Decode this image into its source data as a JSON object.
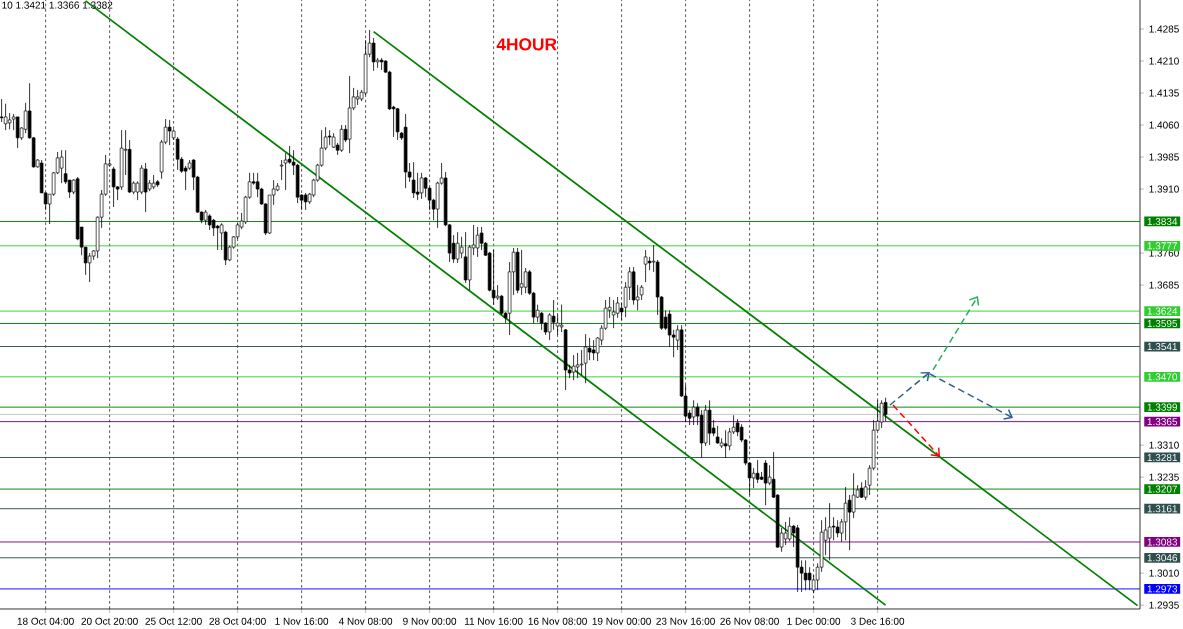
{
  "chart_data": {
    "type": "candlestick",
    "title": "4HOUR",
    "annotations": [
      "10 1.3421 1.3366 1.3382"
    ],
    "grid": "x",
    "ylim": [
      1.2926,
      1.4353
    ],
    "categories": [
      null,
      null,
      null,
      null,
      null,
      null,
      null,
      null,
      null,
      null,
      null,
      "18 Oct 04:00",
      null,
      null,
      null,
      null,
      null,
      null,
      null,
      null,
      null,
      null,
      null,
      null,
      null,
      null,
      null,
      "20 Oct 20:00",
      null,
      null,
      null,
      null,
      null,
      null,
      null,
      null,
      null,
      null,
      null,
      null,
      null,
      null,
      null,
      "25 Oct 12:00",
      null,
      null,
      null,
      null,
      null,
      null,
      null,
      null,
      null,
      null,
      null,
      null,
      null,
      null,
      null,
      "28 Oct 04:00",
      null,
      null,
      null,
      null,
      null,
      null,
      null,
      null,
      null,
      null,
      null,
      null,
      null,
      null,
      null,
      "1 Nov 16:00",
      null,
      null,
      null,
      null,
      null,
      null,
      null,
      null,
      null,
      null,
      null,
      null,
      null,
      null,
      null,
      "4 Nov 08:00",
      null,
      null,
      null,
      null,
      null,
      null,
      null,
      null,
      null,
      null,
      null,
      null,
      null,
      null,
      null,
      "9 Nov 00:00",
      null,
      null,
      null,
      null,
      null,
      null,
      null,
      null,
      null,
      null,
      null,
      null,
      null,
      null,
      null,
      "11 Nov 16:00",
      null,
      null,
      null,
      null,
      null,
      null,
      null,
      null,
      null,
      null,
      null,
      null,
      null,
      null,
      null,
      "16 Nov 08:00",
      null,
      null,
      null,
      null,
      null,
      null,
      null,
      null,
      null,
      null,
      null,
      null,
      null,
      null,
      null,
      "19 Nov 00:00",
      null,
      null,
      null,
      null,
      null,
      null,
      null,
      null,
      null,
      null,
      null,
      null,
      null,
      null,
      null,
      "23 Nov 16:00",
      null,
      null,
      null,
      null,
      null,
      null,
      null,
      null,
      null,
      null,
      null,
      null,
      null,
      null,
      null,
      "26 Nov 08:00",
      null,
      null,
      null,
      null,
      null,
      null,
      null,
      null,
      null,
      null,
      null,
      null,
      null,
      null,
      null,
      "1 Dec 00:00",
      null,
      null,
      null,
      null,
      null,
      null,
      null,
      null,
      null,
      null,
      null,
      null,
      null,
      null,
      null,
      "3 Dec 16:00",
      null,
      null,
      null,
      null,
      null,
      null,
      null,
      null,
      null,
      null,
      null,
      null,
      null,
      null,
      null,
      null,
      null,
      null,
      null,
      null,
      null,
      null,
      null,
      null,
      null,
      null,
      null,
      null,
      null,
      null,
      null,
      null,
      null,
      null,
      null,
      null,
      null,
      null,
      null,
      null,
      null,
      null,
      null,
      null,
      null,
      null,
      null,
      null,
      null,
      null,
      null,
      null,
      null,
      null,
      null,
      null,
      null,
      null,
      null,
      null,
      null,
      null,
      null,
      null,
      null
    ],
    "yticks": [
      {
        "value": 1.4285,
        "label": "1.4285"
      },
      {
        "value": 1.421,
        "label": "1.4210"
      },
      {
        "value": 1.4135,
        "label": "1.4135"
      },
      {
        "value": 1.406,
        "label": "1.4060"
      },
      {
        "value": 1.3985,
        "label": "1.3985"
      },
      {
        "value": 1.391,
        "label": "1.3910"
      },
      {
        "value": 1.376,
        "label": "1.3760"
      },
      {
        "value": 1.3685,
        "label": "1.3685"
      },
      {
        "value": 1.331,
        "label": "1.3310"
      },
      {
        "value": 1.3235,
        "label": "1.3235"
      },
      {
        "value": 1.301,
        "label": "1.3010"
      },
      {
        "value": 1.2935,
        "label": "1.2935"
      }
    ],
    "ref_lines": [
      {
        "axis": "y",
        "value": 1.3834,
        "label": "1.3834",
        "color": "#008000"
      },
      {
        "axis": "y",
        "value": 1.3777,
        "label": "1.3777",
        "color": "#32cd32"
      },
      {
        "axis": "y",
        "value": 1.3624,
        "label": "1.3624",
        "color": "#32cd32"
      },
      {
        "axis": "y",
        "value": 1.3595,
        "label": "1.3595",
        "color": "#008000"
      },
      {
        "axis": "y",
        "value": 1.3541,
        "label": "1.3541",
        "color": "#2f4f4f"
      },
      {
        "axis": "y",
        "value": 1.347,
        "label": "1.3470",
        "color": "#32cd32"
      },
      {
        "axis": "y",
        "value": 1.3399,
        "label": "1.3399",
        "color": "#008000"
      },
      {
        "axis": "y",
        "value": 1.3382,
        "color": "#c0c0c0"
      },
      {
        "axis": "y",
        "value": 1.3365,
        "label": "1.3365",
        "color": "#800080"
      },
      {
        "axis": "y",
        "value": 1.3281,
        "label": "1.3281",
        "color": "#2f4f4f"
      },
      {
        "axis": "y",
        "value": 1.3207,
        "label": "1.3207",
        "color": "#008000"
      },
      {
        "axis": "y",
        "value": 1.3161,
        "label": "1.3161",
        "color": "#2f4f4f"
      },
      {
        "axis": "y",
        "value": 1.3083,
        "label": "1.3083",
        "color": "#800080"
      },
      {
        "axis": "y",
        "value": 1.3046,
        "label": "1.3046",
        "color": "#2f4f4f"
      },
      {
        "axis": "y",
        "value": 1.2973,
        "label": "1.2973",
        "color": "#0000ff"
      }
    ],
    "series": [
      {
        "type": "line",
        "color": "#008000",
        "line_style": "solid",
        "values": [
          null,
          null,
          null,
          null,
          null,
          null,
          null,
          null,
          null,
          null,
          null,
          null,
          null,
          null,
          null,
          null,
          null,
          null,
          null,
          null,
          null,
          null,
          null,
          null,
          null,
          null,
          null,
          null,
          null,
          null,
          null,
          null,
          null,
          null,
          null,
          null,
          null,
          null,
          null,
          null,
          null,
          null,
          null,
          null,
          null,
          null,
          null,
          null,
          null,
          null,
          null,
          null,
          null,
          null,
          null,
          null,
          null,
          null,
          null,
          null,
          null,
          null,
          null,
          null,
          null,
          null,
          null,
          null,
          null,
          null,
          null,
          null,
          null,
          null,
          null,
          null,
          null,
          null,
          null,
          null,
          null,
          null,
          null,
          null,
          null,
          null,
          null,
          null,
          null,
          null,
          null,
          null,
          null,
          1.4279,
          null,
          null,
          null,
          null,
          null,
          null,
          null,
          null,
          null,
          null,
          null,
          null,
          null,
          null,
          null,
          null,
          null,
          null,
          null,
          null,
          null,
          null,
          null,
          null,
          null,
          null,
          null,
          null,
          null,
          null,
          null,
          null,
          null,
          null,
          null,
          null,
          null,
          null,
          null,
          null,
          null,
          null,
          null,
          null,
          null,
          null,
          null,
          null,
          null,
          null,
          null,
          null,
          null,
          null,
          null,
          null,
          null,
          null,
          null,
          null,
          null,
          null,
          null,
          null,
          null,
          null,
          null,
          null,
          null,
          null,
          null,
          null,
          null,
          null,
          null,
          null,
          null,
          null,
          null,
          null,
          null,
          null,
          null,
          null,
          null,
          null,
          null,
          null,
          null,
          null,
          null,
          null,
          null,
          null,
          null,
          null,
          null,
          null,
          null,
          null,
          null,
          null,
          null,
          null,
          null,
          null,
          null,
          null,
          null,
          null,
          null,
          null,
          null,
          null,
          null,
          null,
          null,
          null,
          null,
          null,
          null,
          null,
          null,
          null,
          null,
          null,
          null,
          null,
          null,
          null,
          null,
          null,
          null,
          null,
          null,
          null,
          null,
          null,
          null,
          null,
          null,
          null,
          null,
          null,
          null,
          null,
          null,
          null,
          null,
          null,
          null,
          null,
          null,
          null,
          null,
          null,
          null,
          null,
          null,
          null,
          null,
          null,
          null,
          null,
          null,
          null,
          null,
          null,
          null,
          null,
          null,
          null,
          null,
          null,
          null,
          null,
          null,
          null,
          null,
          null,
          null,
          null,
          null,
          null,
          null,
          null,
          null,
          null,
          null,
          null,
          1.2934
        ]
      },
      {
        "type": "line",
        "color": "#008000",
        "line_style": "solid",
        "values": [
          null,
          null,
          null,
          null,
          null,
          null,
          null,
          null,
          null,
          null,
          null,
          null,
          null,
          null,
          null,
          null,
          null,
          null,
          null,
          null,
          null,
          1.4351,
          null,
          null,
          null,
          null,
          null,
          null,
          null,
          null,
          null,
          null,
          null,
          null,
          null,
          null,
          null,
          null,
          null,
          null,
          null,
          null,
          null,
          null,
          null,
          null,
          null,
          null,
          null,
          null,
          null,
          null,
          null,
          null,
          null,
          null,
          null,
          null,
          null,
          null,
          null,
          null,
          null,
          null,
          null,
          null,
          null,
          null,
          null,
          null,
          null,
          null,
          null,
          null,
          null,
          null,
          null,
          null,
          null,
          null,
          null,
          null,
          null,
          null,
          null,
          null,
          null,
          null,
          null,
          null,
          null,
          null,
          null,
          null,
          null,
          null,
          null,
          null,
          null,
          null,
          null,
          null,
          null,
          null,
          null,
          null,
          null,
          null,
          null,
          null,
          null,
          null,
          null,
          null,
          null,
          null,
          null,
          null,
          null,
          null,
          null,
          null,
          null,
          null,
          null,
          null,
          null,
          null,
          null,
          null,
          null,
          null,
          null,
          null,
          null,
          null,
          null,
          null,
          null,
          null,
          null,
          null,
          null,
          null,
          null,
          null,
          null,
          null,
          null,
          null,
          null,
          null,
          null,
          null,
          null,
          null,
          null,
          null,
          null,
          null,
          null,
          null,
          null,
          null,
          null,
          null,
          null,
          null,
          null,
          null,
          null,
          null,
          null,
          null,
          null,
          null,
          null,
          null,
          null,
          null,
          null,
          null,
          null,
          null,
          null,
          null,
          null,
          null,
          null,
          null,
          null,
          null,
          null,
          null,
          null,
          null,
          null,
          null,
          null,
          null,
          null,
          null,
          null,
          null,
          null,
          null,
          null,
          null,
          null,
          null,
          null,
          null,
          null,
          null,
          null,
          null,
          null,
          null,
          null,
          null,
          null,
          1.2935,
          null,
          null,
          null,
          null,
          null,
          null,
          null,
          null,
          null,
          null,
          null,
          null,
          null,
          null,
          null,
          null,
          null,
          null,
          null,
          null,
          null,
          null,
          null,
          null,
          null,
          null,
          null,
          null,
          null,
          null,
          null,
          null,
          null,
          null,
          null,
          null,
          null,
          null,
          null,
          null,
          null,
          null,
          null,
          null,
          null,
          null,
          null,
          null,
          null,
          null,
          null,
          null,
          null,
          null,
          null,
          null,
          null,
          null,
          null,
          null,
          null,
          null,
          null
        ]
      }
    ],
    "ohlc": [
      [
        1.4079,
        1.4121,
        1.4067,
        1.4077
      ],
      [
        1.4063,
        1.411,
        1.4048,
        1.4079
      ],
      [
        1.4065,
        1.4088,
        1.405,
        1.4072
      ],
      [
        1.4074,
        1.4086,
        1.4048,
        1.4079
      ],
      [
        1.4079,
        1.4079,
        1.4006,
        1.403
      ],
      [
        1.403,
        1.4055,
        1.4025,
        1.4053
      ],
      [
        1.405,
        1.4112,
        1.4041,
        1.4093
      ],
      [
        1.4093,
        1.4158,
        1.4028,
        1.403
      ],
      [
        1.403,
        1.4032,
        1.396,
        1.3962
      ],
      [
        1.3962,
        1.398,
        1.396,
        1.3978
      ],
      [
        1.3971,
        1.3978,
        1.3901,
        1.3901
      ],
      [
        1.3901,
        1.3901,
        1.3861,
        1.3875
      ],
      [
        1.3875,
        1.3898,
        1.3828,
        1.3898
      ],
      [
        1.3898,
        1.395,
        1.3894,
        1.3948
      ],
      [
        1.3948,
        1.3997,
        1.3945,
        1.3983
      ],
      [
        1.3959,
        1.4001,
        1.3924,
        1.3985
      ],
      [
        1.3946,
        1.4001,
        1.3922,
        1.3927
      ],
      [
        1.3931,
        1.3931,
        1.3889,
        1.3903
      ],
      [
        1.3903,
        1.3933,
        1.3898,
        1.3931
      ],
      [
        1.3934,
        1.3938,
        1.379,
        1.3793
      ],
      [
        1.3821,
        1.3821,
        1.3755,
        1.3774
      ],
      [
        1.3774,
        1.3774,
        1.3709,
        1.3737
      ],
      [
        1.3737,
        1.376,
        1.3692,
        1.3753
      ],
      [
        1.3753,
        1.3767,
        1.3744,
        1.3765
      ],
      [
        1.3765,
        1.3846,
        1.3748,
        1.3844
      ],
      [
        1.3844,
        1.3908,
        1.3819,
        1.3898
      ],
      [
        1.3898,
        1.399,
        1.3894,
        1.3969
      ],
      [
        1.3966,
        1.3978,
        1.3962,
        1.3969
      ],
      [
        1.3957,
        1.3962,
        1.3868,
        1.3915
      ],
      [
        1.3915,
        1.3917,
        1.3884,
        1.391
      ],
      [
        1.3915,
        1.4048,
        1.3908,
        1.4006
      ],
      [
        1.4001,
        1.4048,
        1.3943,
        1.4003
      ],
      [
        1.4003,
        1.4025,
        1.3901,
        1.3903
      ],
      [
        1.3903,
        1.3928,
        1.3898,
        1.3924
      ],
      [
        1.3903,
        1.3928,
        1.3884,
        1.3924
      ],
      [
        1.3903,
        1.3966,
        1.3898,
        1.3959
      ],
      [
        1.3957,
        1.3971,
        1.3856,
        1.3903
      ],
      [
        1.391,
        1.3931,
        1.3905,
        1.3924
      ],
      [
        1.3915,
        1.3943,
        1.391,
        1.3924
      ],
      [
        1.3927,
        1.3931,
        1.3915,
        1.392
      ],
      [
        1.395,
        1.4025,
        1.3934,
        1.402
      ],
      [
        1.402,
        1.4074,
        1.4015,
        1.4055
      ],
      [
        1.4055,
        1.4072,
        1.4013,
        1.4046
      ],
      [
        1.403,
        1.405,
        1.4025,
        1.4046
      ],
      [
        1.4027,
        1.4032,
        1.3955,
        1.398
      ],
      [
        1.398,
        1.3985,
        1.3948,
        1.3952
      ],
      [
        1.3959,
        1.3964,
        1.3908,
        1.3952
      ],
      [
        1.3959,
        1.3978,
        1.3955,
        1.3971
      ],
      [
        1.3978,
        1.398,
        1.3908,
        1.3938
      ],
      [
        1.3938,
        1.3941,
        1.3854,
        1.3856
      ],
      [
        1.3856,
        1.3858,
        1.383,
        1.3837
      ],
      [
        1.3837,
        1.3861,
        1.3826,
        1.3856
      ],
      [
        1.3847,
        1.3851,
        1.3814,
        1.3826
      ],
      [
        1.3837,
        1.384,
        1.38,
        1.3819
      ],
      [
        1.3823,
        1.3826,
        1.3767,
        1.3819
      ],
      [
        1.3807,
        1.383,
        1.3767,
        1.3826
      ],
      [
        1.3809,
        1.3812,
        1.3732,
        1.3744
      ],
      [
        1.3744,
        1.3777,
        1.3741,
        1.3774
      ],
      [
        1.3774,
        1.38,
        1.377,
        1.3798
      ],
      [
        1.3798,
        1.383,
        1.3793,
        1.3826
      ],
      [
        1.3821,
        1.3854,
        1.3816,
        1.3835
      ],
      [
        1.3833,
        1.3894,
        1.3828,
        1.3891
      ],
      [
        1.3891,
        1.3948,
        1.3887,
        1.3927
      ],
      [
        1.3927,
        1.3948,
        1.392,
        1.3924
      ],
      [
        1.3927,
        1.3948,
        1.3891,
        1.391
      ],
      [
        1.391,
        1.3913,
        1.3873,
        1.3875
      ],
      [
        1.3875,
        1.3877,
        1.3802,
        1.3807
      ],
      [
        1.3807,
        1.3896,
        1.3805,
        1.3896
      ],
      [
        1.3896,
        1.3931,
        1.3873,
        1.391
      ],
      [
        1.3908,
        1.3924,
        1.3905,
        1.3917
      ],
      [
        1.3964,
        1.3978,
        1.3931,
        1.3966
      ],
      [
        1.3971,
        1.3994,
        1.3908,
        1.3978
      ],
      [
        1.398,
        1.4011,
        1.3969,
        1.3973
      ],
      [
        1.3973,
        1.4001,
        1.3943,
        1.3966
      ],
      [
        1.3966,
        1.3969,
        1.3877,
        1.3891
      ],
      [
        1.3896,
        1.3898,
        1.3861,
        1.3884
      ],
      [
        1.3896,
        1.3901,
        1.3861,
        1.388
      ],
      [
        1.388,
        1.3901,
        1.3875,
        1.3898
      ],
      [
        1.3896,
        1.3934,
        1.3891,
        1.3931
      ],
      [
        1.3931,
        1.3969,
        1.3927,
        1.3966
      ],
      [
        1.3966,
        1.4048,
        1.3962,
        1.4006
      ],
      [
        1.4006,
        1.4055,
        1.4001,
        1.4032
      ],
      [
        1.4034,
        1.4048,
        1.4013,
        1.4032
      ],
      [
        1.4008,
        1.4041,
        1.4006,
        1.4032
      ],
      [
        1.4013,
        1.4018,
        1.399,
        1.4001
      ],
      [
        1.4001,
        1.406,
        1.3997,
        1.405
      ],
      [
        1.405,
        1.406,
        1.402,
        1.4025
      ],
      [
        1.4027,
        1.4175,
        1.3994,
        1.41
      ],
      [
        1.41,
        1.4147,
        1.4095,
        1.4126
      ],
      [
        1.4121,
        1.4142,
        1.4107,
        1.4126
      ],
      [
        1.4121,
        1.4142,
        1.4116,
        1.4137
      ],
      [
        1.4135,
        1.4259,
        1.413,
        1.4226
      ],
      [
        1.4226,
        1.4283,
        1.4219,
        1.4252
      ],
      [
        1.4252,
        1.4264,
        1.4187,
        1.4208
      ],
      [
        1.4208,
        1.4217,
        1.4194,
        1.4212
      ],
      [
        1.4212,
        1.4217,
        1.4189,
        1.4208
      ],
      [
        1.421,
        1.4212,
        1.4182,
        1.4184
      ],
      [
        1.4184,
        1.4187,
        1.4095,
        1.4098
      ],
      [
        1.4102,
        1.4105,
        1.4032,
        1.4098
      ],
      [
        1.4098,
        1.41,
        1.4025,
        1.4044
      ],
      [
        1.4041,
        1.4044,
        1.4025,
        1.403
      ],
      [
        1.4055,
        1.4086,
        1.3912,
        1.395
      ],
      [
        1.395,
        1.3971,
        1.3927,
        1.3938
      ],
      [
        1.3931,
        1.3973,
        1.3889,
        1.3901
      ],
      [
        1.3903,
        1.3948,
        1.3884,
        1.3898
      ],
      [
        1.3901,
        1.3948,
        1.3887,
        1.3936
      ],
      [
        1.3936,
        1.3938,
        1.3891,
        1.3912
      ],
      [
        1.3912,
        1.3915,
        1.3861,
        1.3884
      ],
      [
        1.3884,
        1.3887,
        1.3837,
        1.3863
      ],
      [
        1.3863,
        1.3927,
        1.3819,
        1.3924
      ],
      [
        1.3924,
        1.3971,
        1.392,
        1.3936
      ],
      [
        1.3936,
        1.395,
        1.3823,
        1.3826
      ],
      [
        1.3826,
        1.3828,
        1.3739,
        1.376
      ],
      [
        1.3783,
        1.3802,
        1.3737,
        1.3746
      ],
      [
        1.3746,
        1.3809,
        1.3737,
        1.3783
      ],
      [
        1.376,
        1.3798,
        1.3748,
        1.3774
      ],
      [
        1.3751,
        1.3809,
        1.369,
        1.3697
      ],
      [
        1.3697,
        1.3779,
        1.3673,
        1.3774
      ],
      [
        1.3772,
        1.3826,
        1.3755,
        1.3779
      ],
      [
        1.3772,
        1.3821,
        1.3751,
        1.3802
      ],
      [
        1.3807,
        1.3821,
        1.3767,
        1.3783
      ],
      [
        1.3783,
        1.3786,
        1.3753,
        1.3755
      ],
      [
        1.376,
        1.3763,
        1.367,
        1.3673
      ],
      [
        1.3673,
        1.3767,
        1.3639,
        1.3655
      ],
      [
        1.3655,
        1.3685,
        1.365,
        1.3659
      ],
      [
        1.3659,
        1.3662,
        1.3615,
        1.3619
      ],
      [
        1.3619,
        1.3622,
        1.3596,
        1.3608
      ],
      [
        1.3619,
        1.3739,
        1.3568,
        1.3716
      ],
      [
        1.3716,
        1.3772,
        1.3662,
        1.3762
      ],
      [
        1.3762,
        1.3772,
        1.3666,
        1.3673
      ],
      [
        1.368,
        1.3767,
        1.3662,
        1.3688
      ],
      [
        1.368,
        1.3725,
        1.3666,
        1.3716
      ],
      [
        1.3716,
        1.372,
        1.3662,
        1.3666
      ],
      [
        1.3666,
        1.3669,
        1.3596,
        1.361
      ],
      [
        1.361,
        1.3639,
        1.3598,
        1.3626
      ],
      [
        1.3619,
        1.3622,
        1.358,
        1.3596
      ],
      [
        1.3596,
        1.3598,
        1.3568,
        1.3575
      ],
      [
        1.3575,
        1.3619,
        1.3556,
        1.3615
      ],
      [
        1.3612,
        1.365,
        1.358,
        1.3598
      ],
      [
        1.3589,
        1.3615,
        1.3568,
        1.3596
      ],
      [
        1.3587,
        1.3639,
        1.3575,
        1.3591
      ],
      [
        1.358,
        1.3582,
        1.3439,
        1.3486
      ],
      [
        1.3486,
        1.3498,
        1.3467,
        1.3479
      ],
      [
        1.3481,
        1.3521,
        1.3462,
        1.3495
      ],
      [
        1.3493,
        1.3526,
        1.3467,
        1.3498
      ],
      [
        1.3498,
        1.3533,
        1.3474,
        1.35
      ],
      [
        1.3502,
        1.357,
        1.3455,
        1.354
      ],
      [
        1.3537,
        1.3561,
        1.3509,
        1.3528
      ],
      [
        1.3533,
        1.3556,
        1.3509,
        1.3526
      ],
      [
        1.3526,
        1.3563,
        1.3507,
        1.3561
      ],
      [
        1.3556,
        1.3591,
        1.3544,
        1.3584
      ],
      [
        1.3584,
        1.365,
        1.358,
        1.3631
      ],
      [
        1.3626,
        1.3657,
        1.3608,
        1.3633
      ],
      [
        1.3615,
        1.365,
        1.3584,
        1.3622
      ],
      [
        1.3619,
        1.3657,
        1.3608,
        1.3643
      ],
      [
        1.3631,
        1.3643,
        1.3603,
        1.3622
      ],
      [
        1.3633,
        1.3692,
        1.361,
        1.368
      ],
      [
        1.368,
        1.3727,
        1.365,
        1.3716
      ],
      [
        1.3716,
        1.3727,
        1.3639,
        1.365
      ],
      [
        1.365,
        1.3685,
        1.3626,
        1.3657
      ],
      [
        1.3662,
        1.3685,
        1.365,
        1.368
      ],
      [
        1.3734,
        1.3767,
        1.3692,
        1.3751
      ],
      [
        1.3741,
        1.3751,
        1.372,
        1.3737
      ],
      [
        1.3739,
        1.3779,
        1.3716,
        1.3741
      ],
      [
        1.3739,
        1.3744,
        1.3615,
        1.3657
      ],
      [
        1.3657,
        1.3659,
        1.358,
        1.3584
      ],
      [
        1.361,
        1.3626,
        1.358,
        1.3584
      ],
      [
        1.3617,
        1.3626,
        1.354,
        1.3568
      ],
      [
        1.3568,
        1.358,
        1.3516,
        1.3563
      ],
      [
        1.3556,
        1.3591,
        1.3533,
        1.358
      ],
      [
        1.358,
        1.3591,
        1.3423,
        1.3425
      ],
      [
        1.3425,
        1.3451,
        1.3364,
        1.3378
      ],
      [
        1.3385,
        1.3392,
        1.3357,
        1.3373
      ],
      [
        1.3376,
        1.3415,
        1.3357,
        1.3399
      ],
      [
        1.3399,
        1.3408,
        1.3357,
        1.3378
      ],
      [
        1.338,
        1.3392,
        1.328,
        1.3315
      ],
      [
        1.3315,
        1.3404,
        1.3308,
        1.3392
      ],
      [
        1.3392,
        1.3415,
        1.331,
        1.3338
      ],
      [
        1.335,
        1.3369,
        1.3331,
        1.3338
      ],
      [
        1.3329,
        1.3355,
        1.3313,
        1.3315
      ],
      [
        1.3308,
        1.3326,
        1.3303,
        1.3315
      ],
      [
        1.3313,
        1.3345,
        1.328,
        1.3308
      ],
      [
        1.3308,
        1.335,
        1.3298,
        1.3341
      ],
      [
        1.3341,
        1.338,
        1.3336,
        1.3352
      ],
      [
        1.3362,
        1.3371,
        1.3331,
        1.3341
      ],
      [
        1.3352,
        1.3359,
        1.3317,
        1.3322
      ],
      [
        1.3322,
        1.3324,
        1.3263,
        1.3268
      ],
      [
        1.3268,
        1.327,
        1.3193,
        1.3233
      ],
      [
        1.3233,
        1.3256,
        1.3209,
        1.3244
      ],
      [
        1.3244,
        1.3275,
        1.3221,
        1.323
      ],
      [
        1.3235,
        1.3247,
        1.3228,
        1.323
      ],
      [
        1.3268,
        1.3275,
        1.3169,
        1.3221
      ],
      [
        1.3221,
        1.3263,
        1.3216,
        1.3235
      ],
      [
        1.323,
        1.3294,
        1.3186,
        1.3188
      ],
      [
        1.3193,
        1.3195,
        1.3069,
        1.3071
      ],
      [
        1.3071,
        1.3116,
        1.306,
        1.3104
      ],
      [
        1.309,
        1.313,
        1.3076,
        1.3104
      ],
      [
        1.309,
        1.3141,
        1.3085,
        1.312
      ],
      [
        1.312,
        1.3123,
        1.3071,
        1.3104
      ],
      [
        1.3116,
        1.3123,
        1.2966,
        1.3024
      ],
      [
        1.3024,
        1.304,
        1.2966,
        1.301
      ],
      [
        1.301,
        1.304,
        1.297,
        1.2994
      ],
      [
        1.301,
        1.3024,
        1.297,
        1.2994
      ],
      [
        1.297,
        1.3005,
        1.2963,
        1.2994
      ],
      [
        1.2994,
        1.3033,
        1.297,
        1.3024
      ],
      [
        1.3024,
        1.3134,
        1.3013,
        1.3106
      ],
      [
        1.3087,
        1.3141,
        1.3052,
        1.3111
      ],
      [
        1.3092,
        1.3174,
        1.304,
        1.3118
      ],
      [
        1.312,
        1.3141,
        1.3087,
        1.3118
      ],
      [
        1.3118,
        1.3134,
        1.3094,
        1.3104
      ],
      [
        1.3104,
        1.3137,
        1.3083,
        1.313
      ],
      [
        1.313,
        1.3212,
        1.3087,
        1.3174
      ],
      [
        1.3181,
        1.3193,
        1.3064,
        1.3153
      ],
      [
        1.3153,
        1.3244,
        1.3139,
        1.3193
      ],
      [
        1.3188,
        1.3216,
        1.3186,
        1.3205
      ],
      [
        1.3209,
        1.3223,
        1.3186,
        1.3188
      ],
      [
        1.3188,
        1.3228,
        1.3181,
        1.3212
      ],
      [
        1.3216,
        1.3263,
        1.3193,
        1.3256
      ],
      [
        1.3256,
        1.3369,
        1.3251,
        1.3345
      ],
      [
        1.3345,
        1.3415,
        1.3343,
        1.3366
      ],
      [
        1.3364,
        1.3415,
        1.335,
        1.3408
      ],
      [
        1.341,
        1.3421,
        1.3366,
        1.3382
      ],
      null,
      null,
      null,
      null,
      null,
      null,
      null,
      null,
      null,
      null,
      null,
      null,
      null,
      null,
      null,
      null,
      null,
      null,
      null,
      null,
      null,
      null,
      null,
      null,
      null,
      null,
      null,
      null,
      null,
      null,
      null,
      null,
      null,
      null,
      null,
      null,
      null,
      null,
      null,
      null,
      null,
      null,
      null,
      null,
      null,
      null,
      null,
      null,
      null,
      null,
      null,
      null,
      null,
      null,
      null,
      null,
      null,
      null,
      null,
      null,
      null,
      null,
      null
    ]
  }
}
